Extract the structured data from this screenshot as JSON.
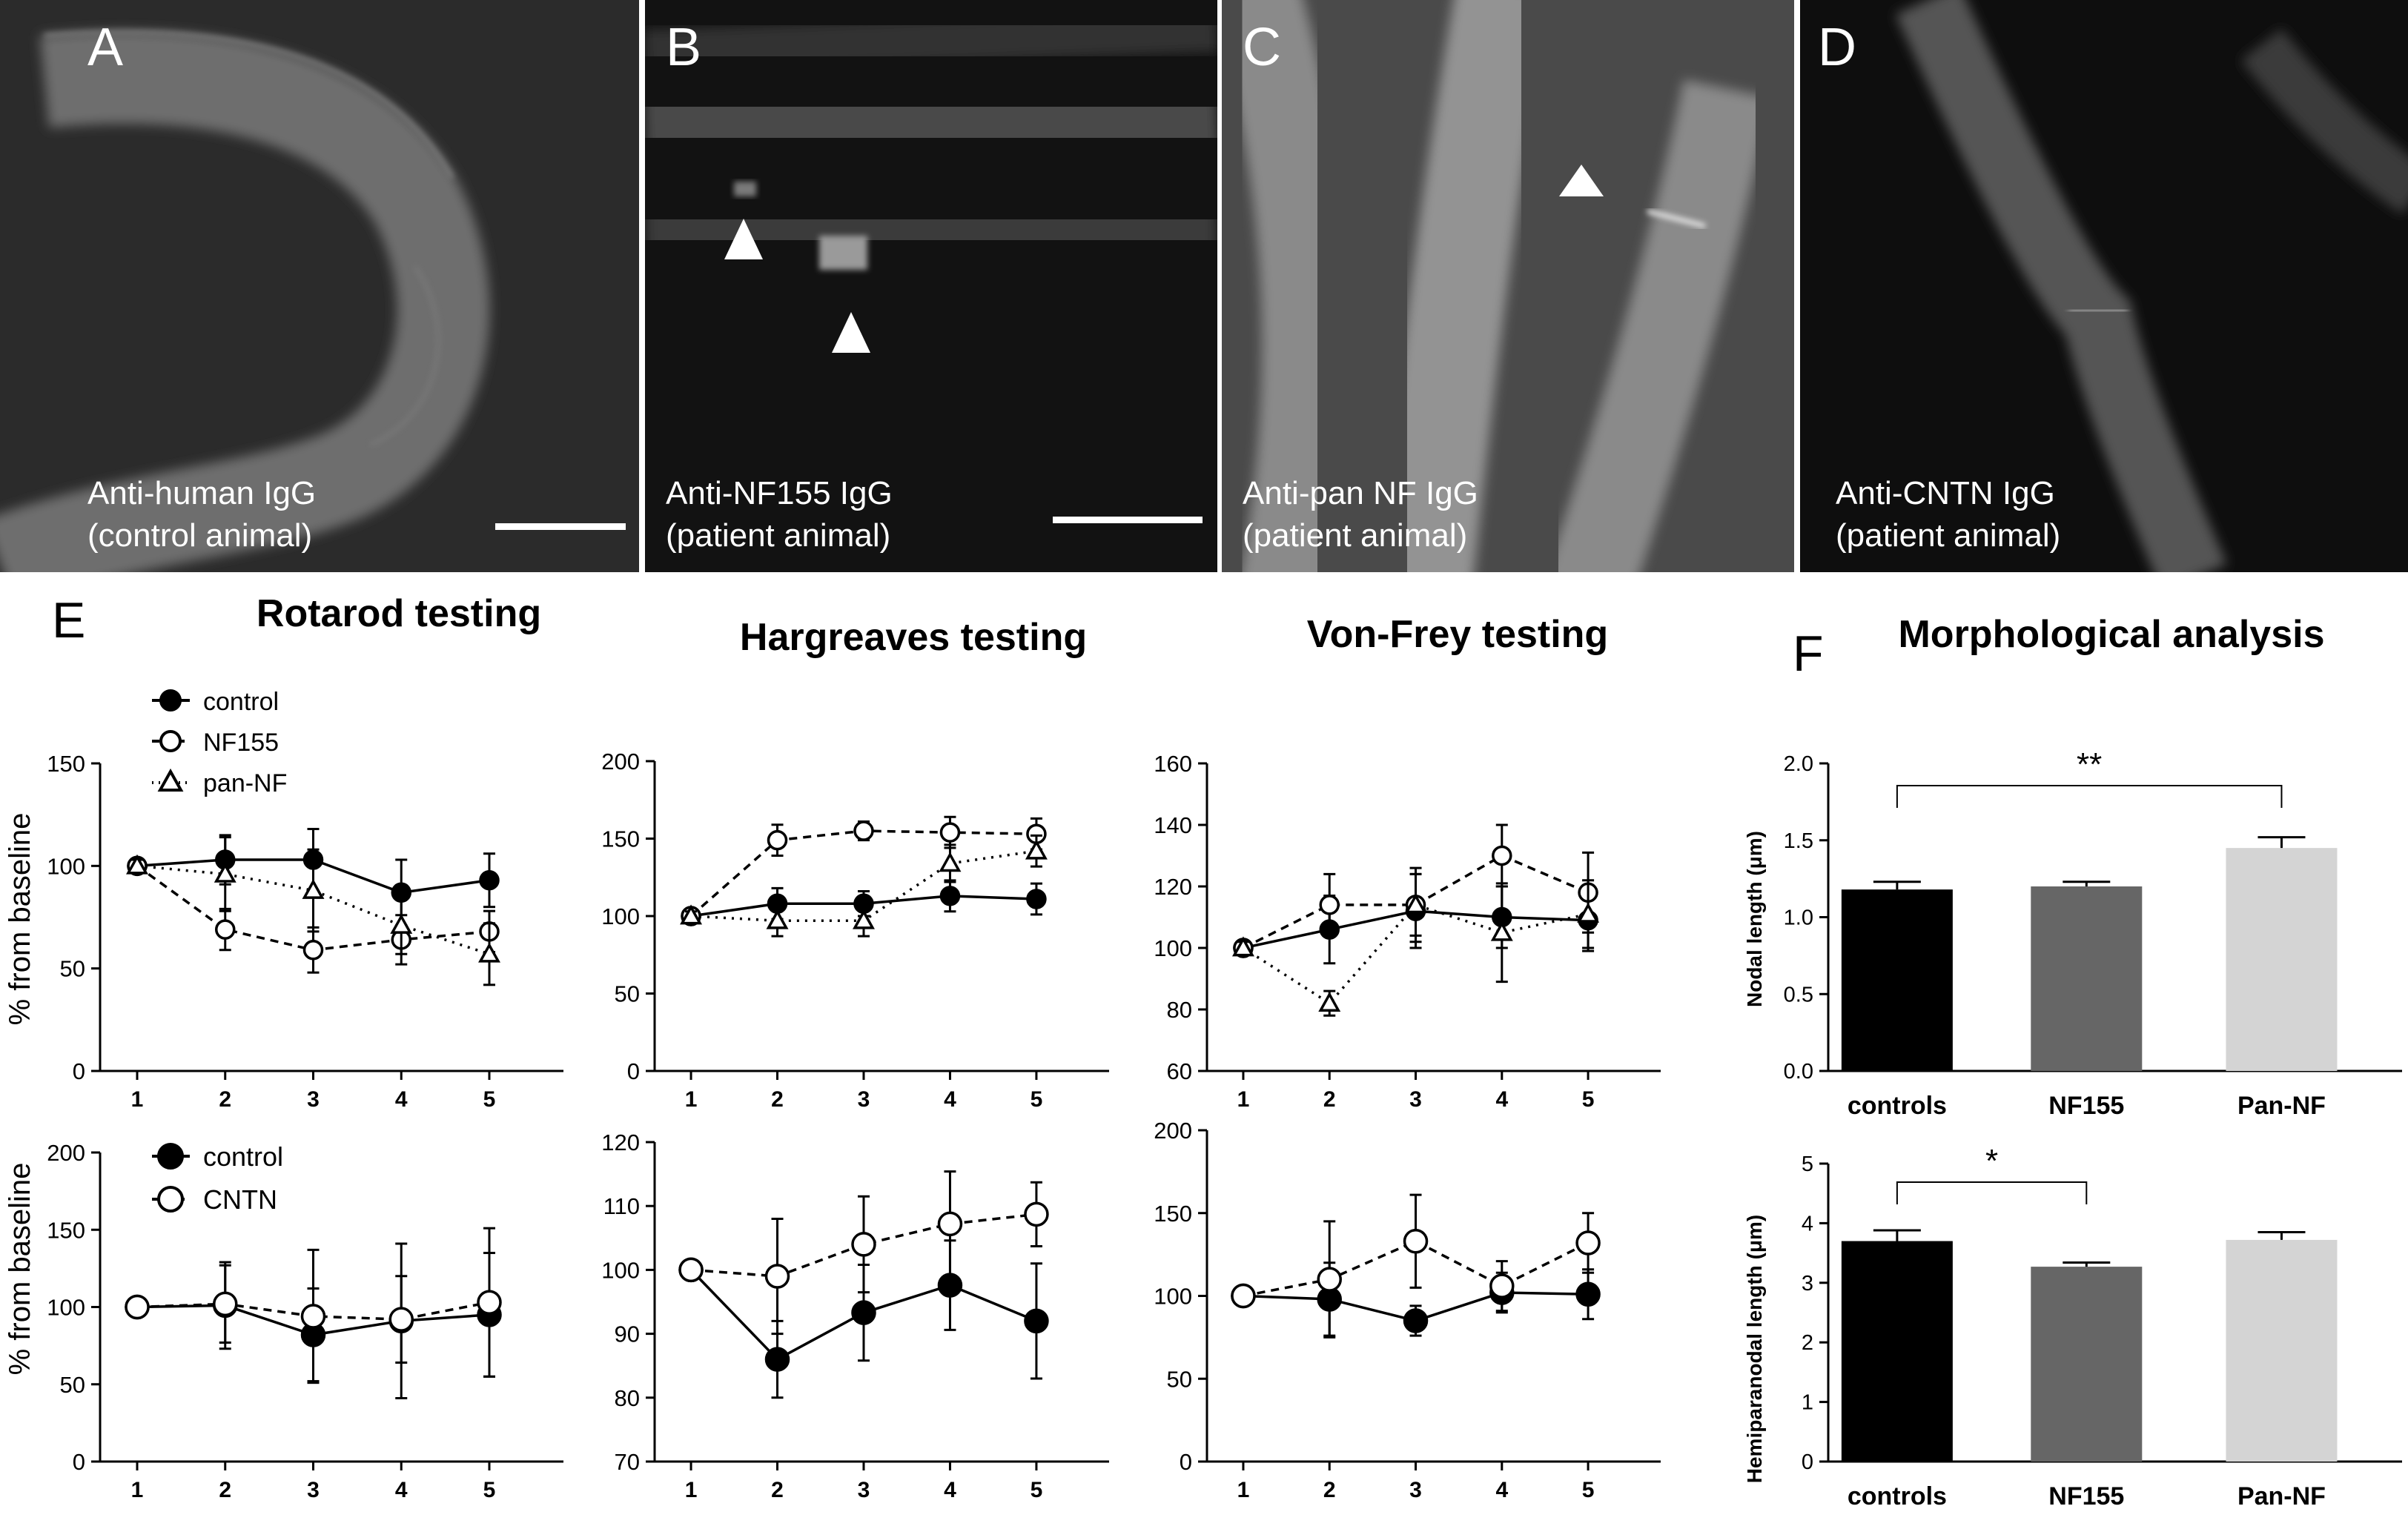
{
  "micrographs": [
    {
      "letter": "A",
      "caption_1": "Anti-human IgG",
      "caption_2": "(control animal)",
      "scale_bar": true
    },
    {
      "letter": "B",
      "caption_1": "Anti-NF155 IgG",
      "caption_2": "(patient animal)",
      "scale_bar": true
    },
    {
      "letter": "C",
      "caption_1": "Anti-pan NF IgG",
      "caption_2": "(patient animal)",
      "scale_bar": false
    },
    {
      "letter": "D",
      "caption_1": "Anti-CNTN IgG",
      "caption_2": "(patient animal)",
      "scale_bar": false
    }
  ],
  "labels": {
    "E": "E",
    "F": "F",
    "rotarod": "Rotarod testing",
    "hargreaves": "Hargreaves testing",
    "vonfrey": "Von-Frey testing",
    "morph": "Morphological analysis",
    "ylabel_top": "% from baseline",
    "ylabel_bottom": "% from baseline",
    "nodal_ylabel": "Nodal length (μm)",
    "hemi_ylabel": "Hemiparanodal length (μm)"
  },
  "legend_top": [
    {
      "name": "control",
      "marker": "filled-circle",
      "line": "solid"
    },
    {
      "name": "NF155",
      "marker": "open-circle",
      "line": "dashed"
    },
    {
      "name": "pan-NF",
      "marker": "open-triangle",
      "line": "dotted"
    }
  ],
  "legend_bottom": [
    {
      "name": "control",
      "marker": "filled-circle",
      "line": "solid"
    },
    {
      "name": "CNTN",
      "marker": "open-circle",
      "line": "dashed"
    }
  ],
  "chart_data": [
    {
      "id": "rotarod_top",
      "type": "line",
      "x": [
        1,
        2,
        3,
        4,
        5
      ],
      "ylim": [
        0,
        150
      ],
      "yticks": [
        0,
        50,
        100,
        150
      ],
      "series": [
        {
          "name": "control",
          "marker": "filled-circle",
          "line": "solid",
          "values": [
            100,
            103,
            103,
            87,
            93
          ],
          "err": [
            3,
            12,
            15,
            16,
            13
          ]
        },
        {
          "name": "NF155",
          "marker": "open-circle",
          "line": "dashed",
          "values": [
            100,
            69,
            59,
            64,
            68
          ],
          "err": [
            3,
            10,
            11,
            12,
            10
          ]
        },
        {
          "name": "pan-NF",
          "marker": "open-triangle",
          "line": "dotted",
          "values": [
            100,
            96,
            88,
            71,
            57
          ],
          "err": [
            3,
            18,
            20,
            14,
            15
          ]
        }
      ]
    },
    {
      "id": "hargreaves_top",
      "type": "line",
      "x": [
        1,
        2,
        3,
        4,
        5
      ],
      "ylim": [
        0,
        200
      ],
      "yticks": [
        0,
        50,
        100,
        150,
        200
      ],
      "series": [
        {
          "name": "control",
          "marker": "filled-circle",
          "line": "solid",
          "values": [
            100,
            108,
            108,
            113,
            111
          ],
          "err": [
            3,
            10,
            8,
            10,
            10
          ]
        },
        {
          "name": "NF155",
          "marker": "open-circle",
          "line": "dashed",
          "values": [
            100,
            149,
            155,
            154,
            153
          ],
          "err": [
            3,
            10,
            6,
            10,
            10
          ]
        },
        {
          "name": "pan-NF",
          "marker": "open-triangle",
          "line": "dotted",
          "values": [
            100,
            97,
            97,
            134,
            142
          ],
          "err": [
            3,
            10,
            10,
            12,
            10
          ]
        }
      ]
    },
    {
      "id": "vonfrey_top",
      "type": "line",
      "x": [
        1,
        2,
        3,
        4,
        5
      ],
      "ylim": [
        60,
        160
      ],
      "yticks": [
        60,
        80,
        100,
        120,
        140,
        160
      ],
      "series": [
        {
          "name": "control",
          "marker": "filled-circle",
          "line": "solid",
          "values": [
            100,
            106,
            112,
            110,
            109
          ],
          "err": [
            2,
            11,
            12,
            10,
            10
          ]
        },
        {
          "name": "NF155",
          "marker": "open-circle",
          "line": "dashed",
          "values": [
            100,
            114,
            114,
            130,
            118
          ],
          "err": [
            2,
            10,
            12,
            10,
            13
          ]
        },
        {
          "name": "pan-NF",
          "marker": "open-triangle",
          "line": "dotted",
          "values": [
            100,
            82,
            114,
            105,
            111
          ],
          "err": [
            2,
            4,
            10,
            16,
            11
          ]
        }
      ]
    },
    {
      "id": "rotarod_bottom",
      "type": "line",
      "x": [
        1,
        2,
        3,
        4,
        5
      ],
      "ylim": [
        0,
        200
      ],
      "yticks": [
        0,
        50,
        100,
        150,
        200
      ],
      "series": [
        {
          "name": "control",
          "marker": "filled-circle",
          "line": "solid",
          "values": [
            100,
            101,
            82,
            91,
            95
          ],
          "err": [
            3,
            28,
            30,
            50,
            40
          ]
        },
        {
          "name": "CNTN",
          "marker": "open-circle",
          "line": "dashed",
          "values": [
            100,
            102,
            94,
            92,
            103
          ],
          "err": [
            3,
            25,
            43,
            28,
            48
          ]
        }
      ]
    },
    {
      "id": "hargreaves_bottom",
      "type": "line",
      "x": [
        1,
        2,
        3,
        4,
        5
      ],
      "ylim": [
        70,
        120
      ],
      "yticks": [
        70,
        80,
        90,
        100,
        110,
        120
      ],
      "series": [
        {
          "name": "control",
          "marker": "filled-circle",
          "line": "solid",
          "values": [
            100,
            86,
            93.3,
            97.6,
            92
          ],
          "err": [
            0.5,
            6,
            7.5,
            7,
            9
          ]
        },
        {
          "name": "CNTN",
          "marker": "open-circle",
          "line": "dashed",
          "values": [
            100,
            99,
            104,
            107.2,
            108.7
          ],
          "err": [
            0.5,
            9,
            7.5,
            8.2,
            5
          ]
        }
      ]
    },
    {
      "id": "vonfrey_bottom",
      "type": "line",
      "x": [
        1,
        2,
        3,
        4,
        5
      ],
      "ylim": [
        0,
        200
      ],
      "yticks": [
        0,
        50,
        100,
        150,
        200
      ],
      "series": [
        {
          "name": "control",
          "marker": "filled-circle",
          "line": "solid",
          "values": [
            100,
            98,
            85,
            102,
            101
          ],
          "err": [
            3,
            22,
            9,
            12,
            15
          ]
        },
        {
          "name": "CNTN",
          "marker": "open-circle",
          "line": "dashed",
          "values": [
            100,
            110,
            133,
            106,
            132
          ],
          "err": [
            3,
            35,
            28,
            15,
            18
          ]
        }
      ]
    },
    {
      "id": "nodal_length",
      "type": "bar",
      "categories": [
        "controls",
        "NF155",
        "Pan-NF"
      ],
      "values": [
        1.18,
        1.2,
        1.45
      ],
      "err": [
        0.05,
        0.03,
        0.07
      ],
      "colors": [
        "#000000",
        "#666666",
        "#d4d4d4"
      ],
      "ylim": [
        0,
        2
      ],
      "yticks": [
        "0.0",
        "0.5",
        "1.0",
        "1.5",
        "2.0"
      ],
      "significance": "**"
    },
    {
      "id": "hemiparanodal_length",
      "type": "bar",
      "categories": [
        "controls",
        "NF155",
        "Pan-NF"
      ],
      "values": [
        3.7,
        3.27,
        3.72
      ],
      "err": [
        0.18,
        0.07,
        0.13
      ],
      "colors": [
        "#000000",
        "#666666",
        "#d4d4d4"
      ],
      "ylim": [
        0,
        5
      ],
      "yticks": [
        "0",
        "1",
        "2",
        "3",
        "4",
        "5"
      ],
      "significance": "*"
    }
  ]
}
